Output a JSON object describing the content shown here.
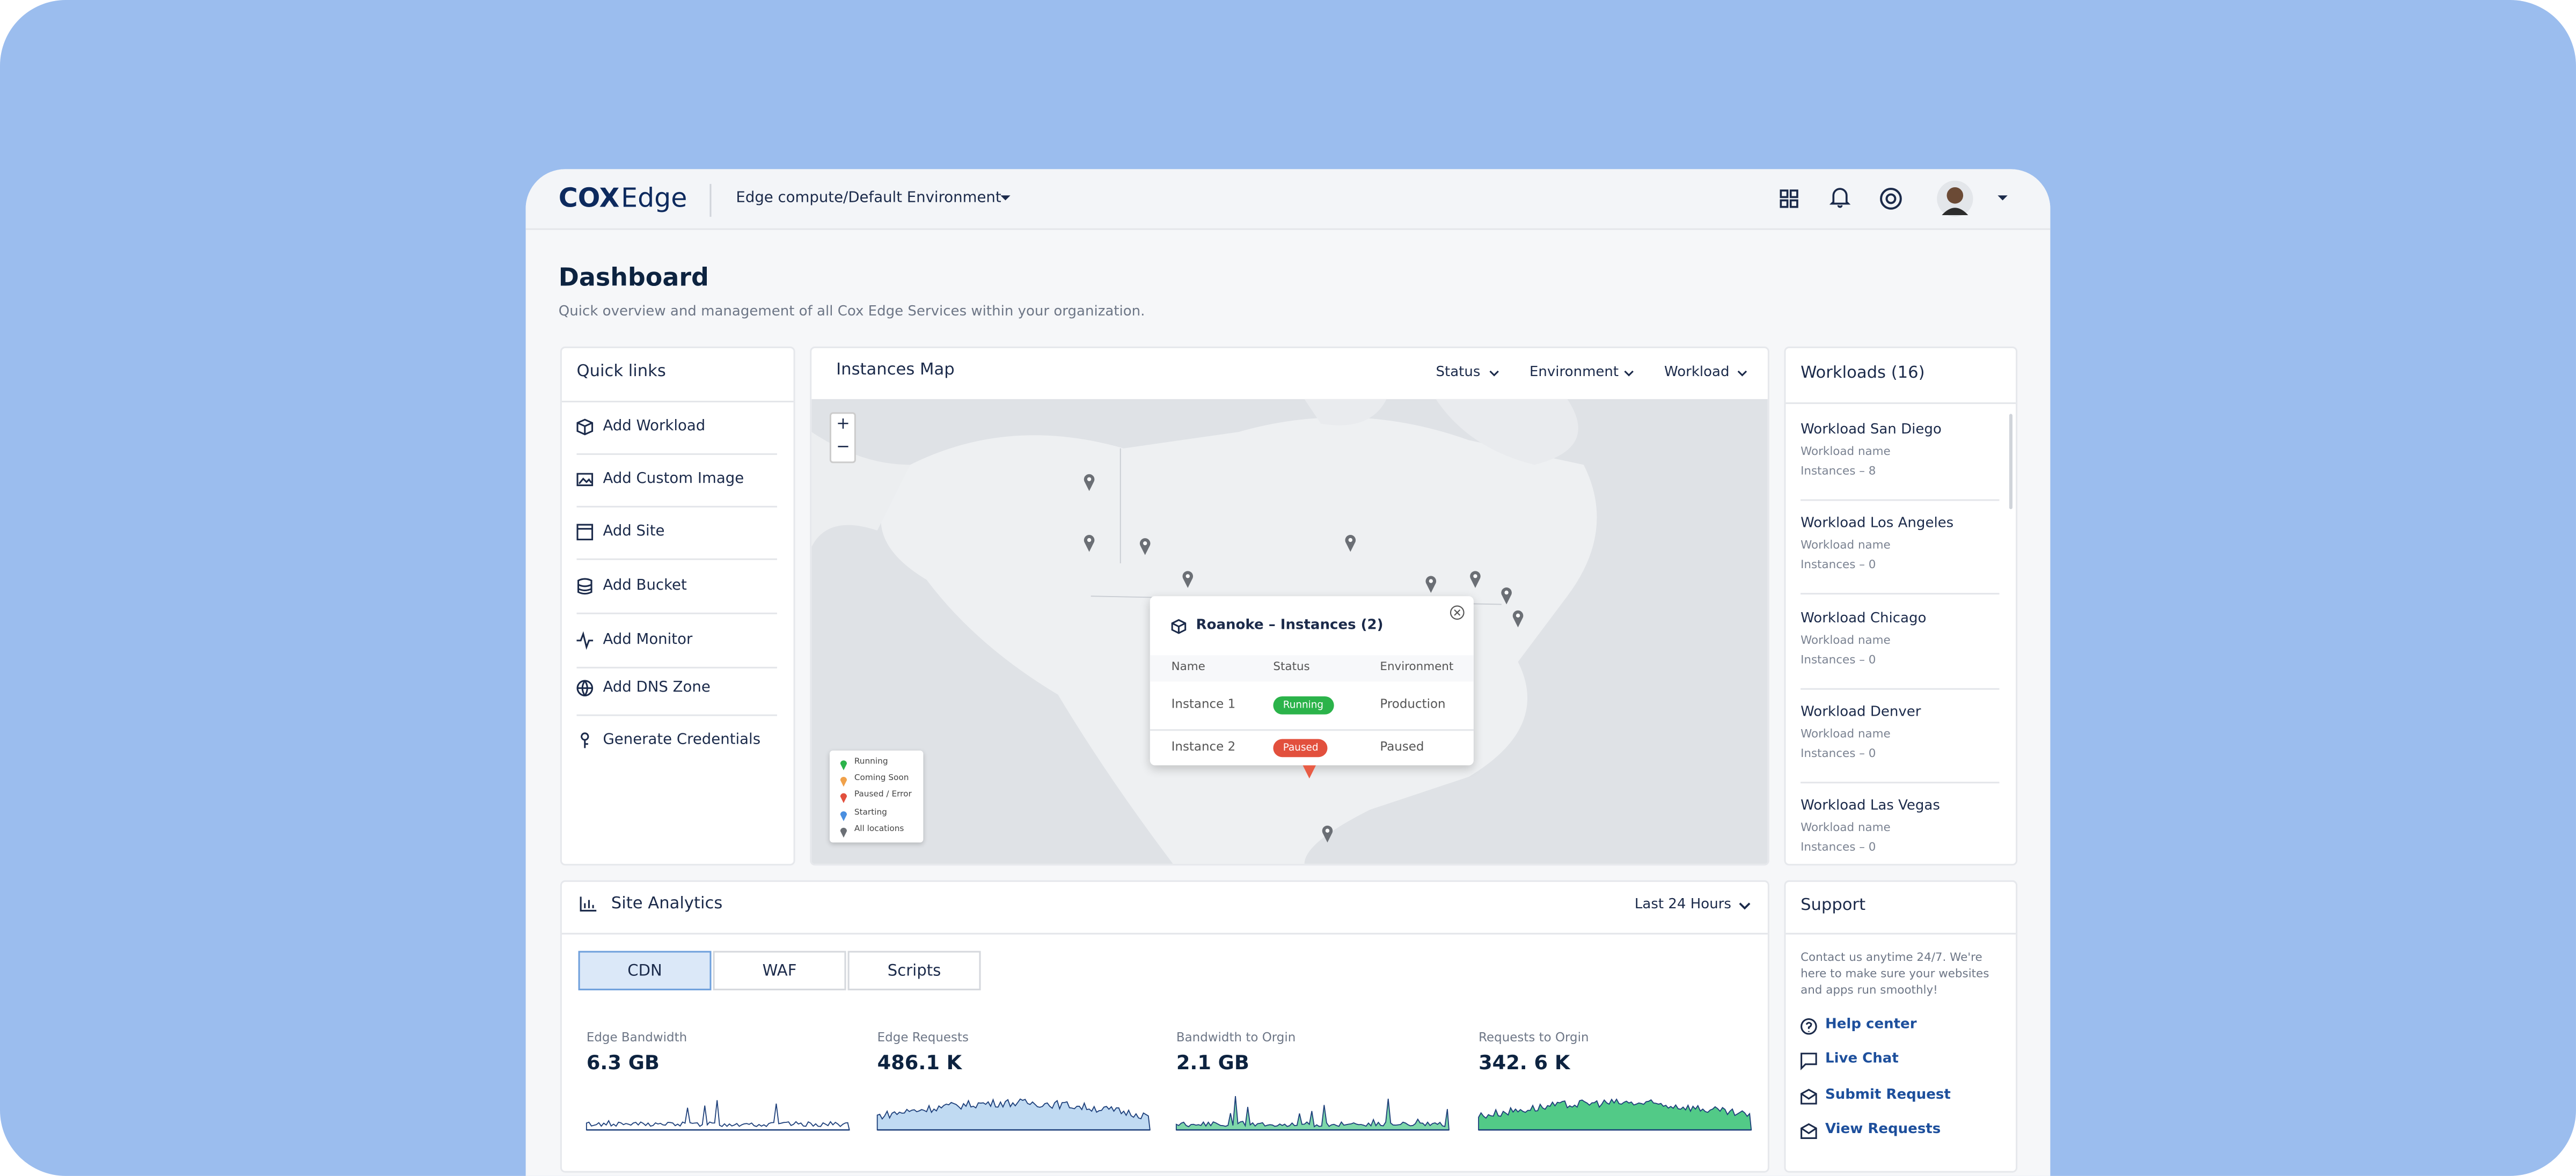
{
  "header": {
    "logo_brand": "COX",
    "logo_product": "Edge",
    "environment": "Edge compute/Default Environment"
  },
  "page": {
    "title": "Dashboard",
    "subtitle": "Quick overview and management of all Cox Edge Services within your organization."
  },
  "quick_links": {
    "title": "Quick links",
    "items": [
      "Add Workload",
      "Add Custom Image",
      "Add Site",
      "Add Bucket",
      "Add Monitor",
      "Add DNS Zone",
      "Generate Credentials"
    ]
  },
  "instances_map": {
    "title": "Instances Map",
    "filters": [
      "Status",
      "Environment",
      "Workload"
    ],
    "zoom_in": "+",
    "zoom_out": "−",
    "popup": {
      "title": "Roanoke – Instances (2)",
      "columns": [
        "Name",
        "Status",
        "Environment"
      ],
      "rows": [
        [
          "Instance 1",
          "Running",
          "Production"
        ],
        [
          "Instance 2",
          "Paused",
          "Paused"
        ]
      ]
    },
    "legend": [
      "Running",
      "Coming Soon",
      "Paused / Error",
      "Starting",
      "All locations"
    ]
  },
  "workloads": {
    "title": "Workloads (16)",
    "items": [
      {
        "name": "Workload San Diego",
        "subtitle": "Workload name",
        "instances": "Instances – 8"
      },
      {
        "name": "Workload Los Angeles",
        "subtitle": "Workload name",
        "instances": "Instances – 0"
      },
      {
        "name": "Workload Chicago",
        "subtitle": "Workload name",
        "instances": "Instances – 0"
      },
      {
        "name": "Workload Denver",
        "subtitle": "Workload name",
        "instances": "Instances – 0"
      },
      {
        "name": "Workload Las Vegas",
        "subtitle": "Workload name",
        "instances": "Instances – 0"
      }
    ]
  },
  "site_analytics": {
    "title": "Site Analytics",
    "range": "Last 24 Hours",
    "tabs": [
      "CDN",
      "WAF",
      "Scripts"
    ],
    "metrics": [
      {
        "label": "Edge Bandwidth",
        "value": "6.3 GB"
      },
      {
        "label": "Edge Requests",
        "value": "486.1 K"
      },
      {
        "label": "Bandwidth to Orgin",
        "value": "2.1 GB"
      },
      {
        "label": "Requests to Orgin",
        "value": "342. 6 K"
      }
    ]
  },
  "support": {
    "title": "Support",
    "text": "Contact us anytime 24/7. We're here to make sure your websites and apps run smoothly!",
    "links": [
      "Help center",
      "Live Chat",
      "Submit Request",
      "View Requests"
    ]
  }
}
